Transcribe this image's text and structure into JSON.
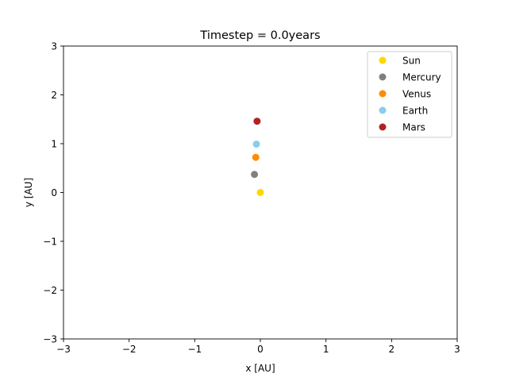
{
  "chart_data": {
    "type": "scatter",
    "title": "Timestep = 0.0years",
    "xlabel": "x [AU]",
    "ylabel": "y [AU]",
    "xlim": [
      -3,
      3
    ],
    "ylim": [
      -3,
      3
    ],
    "x_ticks": [
      -3,
      -2,
      -1,
      0,
      1,
      2,
      3
    ],
    "y_ticks": [
      -3,
      -2,
      -1,
      0,
      1,
      2,
      3
    ],
    "x_tick_labels": [
      "−3",
      "−2",
      "−1",
      "0",
      "1",
      "2",
      "3"
    ],
    "y_tick_labels": [
      "−3",
      "−2",
      "−1",
      "0",
      "1",
      "2",
      "3"
    ],
    "grid": false,
    "legend_position": "top-right",
    "series": [
      {
        "name": "Sun",
        "color": "#FFD700",
        "x": 0.0,
        "y": 0.0
      },
      {
        "name": "Mercury",
        "color": "#808080",
        "x": -0.09,
        "y": 0.37
      },
      {
        "name": "Venus",
        "color": "#FF8C00",
        "x": -0.07,
        "y": 0.72
      },
      {
        "name": "Earth",
        "color": "#87CEEB",
        "x": -0.06,
        "y": 0.99
      },
      {
        "name": "Mars",
        "color": "#B22222",
        "x": -0.05,
        "y": 1.46
      }
    ]
  }
}
